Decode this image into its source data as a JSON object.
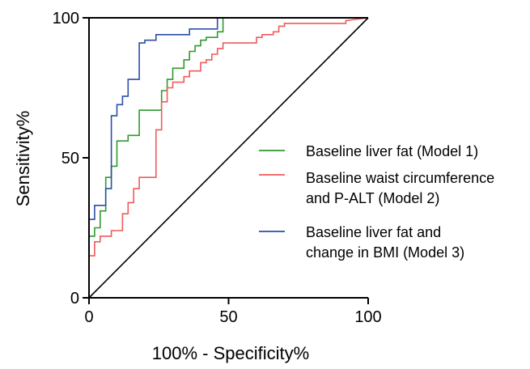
{
  "chart_data": {
    "type": "line",
    "title": "",
    "xlabel": "100% - Specificity%",
    "ylabel": "Sensitivity%",
    "xlim": [
      0,
      100
    ],
    "ylim": [
      0,
      100
    ],
    "xticks": [
      0,
      50,
      100
    ],
    "yticks": [
      0,
      50,
      100
    ],
    "xtick_labels": [
      "0",
      "50",
      "100"
    ],
    "ytick_labels": [
      "0",
      "50",
      "100"
    ],
    "grid": false,
    "legend_position": "right",
    "reference_line": {
      "x": [
        0,
        100
      ],
      "y": [
        0,
        100
      ],
      "color": "#000000"
    },
    "series": [
      {
        "name": "Baseline liver fat (Model 1)",
        "color": "#2e9a2e",
        "x": [
          0,
          0,
          2,
          2,
          4,
          4,
          6,
          6,
          8,
          8,
          10,
          10,
          14,
          14,
          18,
          18,
          26,
          26,
          28,
          28,
          30,
          30,
          34,
          34,
          36,
          36,
          38,
          38,
          40,
          40,
          42,
          42,
          46,
          46,
          48,
          48,
          100
        ],
        "y": [
          0,
          22,
          22,
          25,
          25,
          31,
          31,
          43,
          43,
          47,
          47,
          56,
          56,
          58,
          58,
          67,
          67,
          74,
          74,
          78,
          78,
          82,
          82,
          85,
          85,
          88,
          88,
          90,
          90,
          92,
          92,
          93,
          93,
          95,
          95,
          100,
          100
        ]
      },
      {
        "name": "Baseline waist circumference and P-ALT (Model 2)",
        "color": "#f05a5a",
        "x": [
          0,
          0,
          2,
          2,
          4,
          4,
          8,
          8,
          12,
          12,
          14,
          14,
          16,
          16,
          18,
          18,
          24,
          24,
          26,
          26,
          28,
          28,
          30,
          30,
          34,
          34,
          36,
          36,
          40,
          40,
          42,
          42,
          44,
          44,
          46,
          46,
          48,
          48,
          60,
          60,
          62,
          62,
          66,
          66,
          68,
          68,
          70,
          70,
          92,
          92,
          100
        ],
        "y": [
          0,
          15,
          15,
          20,
          20,
          22,
          22,
          24,
          24,
          30,
          30,
          34,
          34,
          39,
          39,
          43,
          43,
          60,
          60,
          70,
          70,
          75,
          75,
          77,
          77,
          79,
          79,
          81,
          81,
          84,
          84,
          85,
          85,
          87,
          87,
          89,
          89,
          91,
          91,
          93,
          93,
          94,
          94,
          95,
          95,
          97,
          97,
          98,
          98,
          99,
          100
        ]
      },
      {
        "name": "Baseline liver fat and change in BMI (Model 3)",
        "color": "#2b4ea8",
        "x": [
          0,
          0,
          2,
          2,
          6,
          6,
          8,
          8,
          10,
          10,
          12,
          12,
          14,
          14,
          18,
          18,
          20,
          20,
          24,
          24,
          36,
          36,
          46,
          46,
          100
        ],
        "y": [
          0,
          28,
          28,
          33,
          33,
          39,
          39,
          65,
          65,
          69,
          69,
          72,
          72,
          78,
          78,
          91,
          91,
          92,
          92,
          94,
          94,
          96,
          96,
          100,
          100
        ]
      }
    ]
  }
}
